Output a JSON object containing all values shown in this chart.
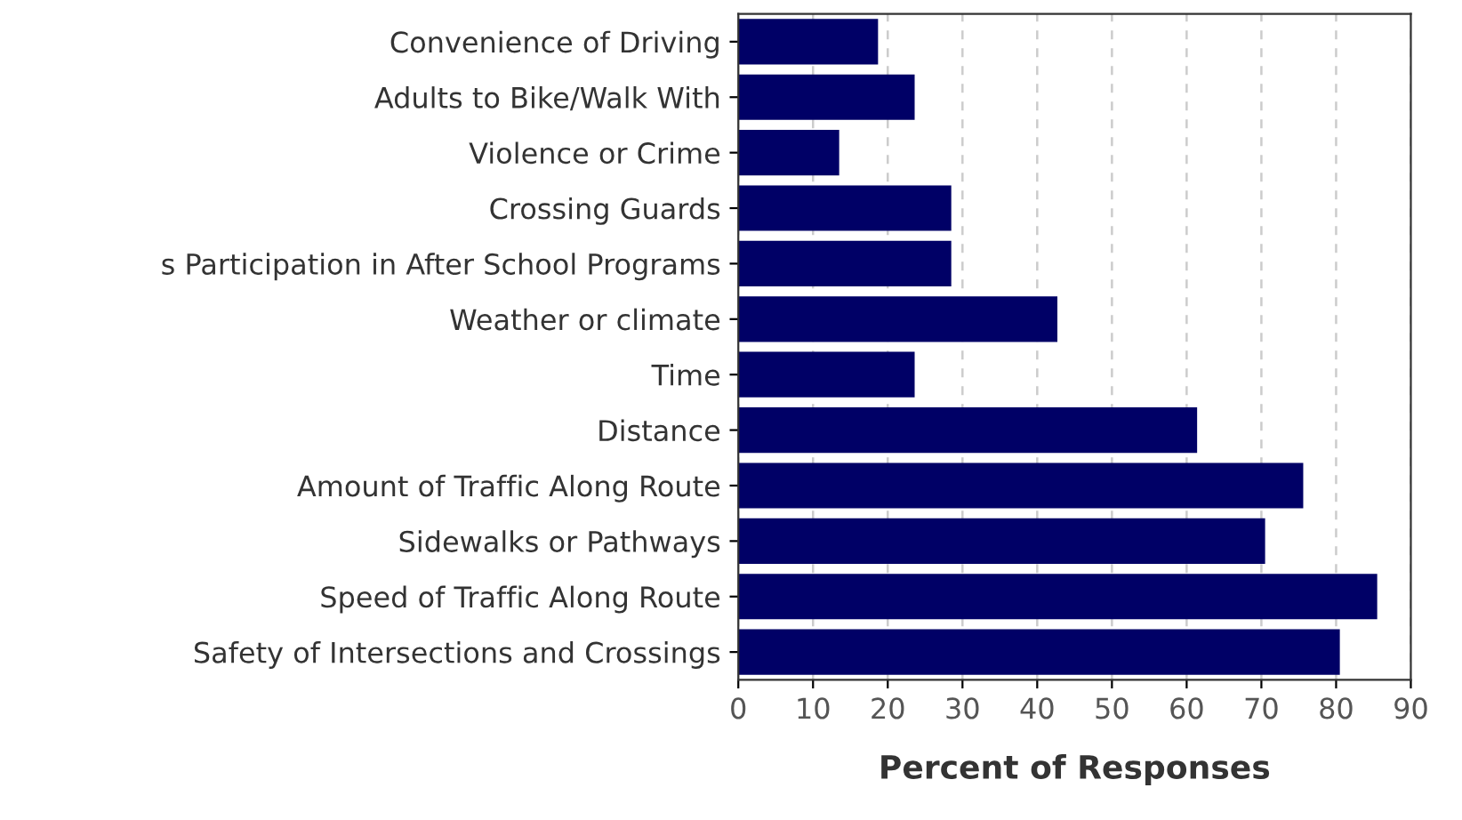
{
  "chart_data": {
    "type": "bar",
    "orientation": "horizontal",
    "xlabel": "Percent of Responses",
    "categories": [
      "Convenience of Driving",
      "Adults to Bike/Walk With",
      "Violence or Crime",
      "Crossing Guards",
      "s Participation in After School Programs",
      "Weather or climate",
      "Time",
      "Distance",
      "Amount of Traffic Along Route",
      "Sidewalks or Pathways",
      "Speed of Traffic Along Route",
      "Safety of Intersections and Crossings"
    ],
    "values": [
      18.7,
      23.6,
      13.5,
      28.5,
      28.5,
      42.7,
      23.6,
      61.4,
      75.6,
      70.5,
      85.5,
      80.5
    ],
    "color": "#000066",
    "xlim": [
      0,
      90
    ],
    "xticks": [
      0,
      10,
      20,
      30,
      40,
      50,
      60,
      70,
      80,
      90
    ],
    "grid": "x",
    "legend": false
  }
}
